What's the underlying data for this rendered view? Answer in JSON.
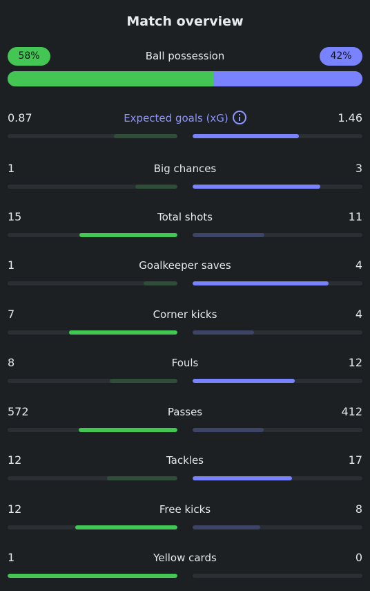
{
  "title": "Match overview",
  "possession": {
    "label": "Ball possession",
    "home": "58%",
    "away": "42%",
    "home_value": 58,
    "away_value": 42
  },
  "colors": {
    "home_strong": "#43c653",
    "home_dim": "#2f4d38",
    "away_strong": "#7a83ff",
    "away_dim": "#3e4466",
    "track": "#2a2f33"
  },
  "stats": [
    {
      "label": "Expected goals (xG)",
      "home": "0.87",
      "away": "1.46",
      "home_num": 0.87,
      "away_num": 1.46,
      "accent": true,
      "info_icon": "info-icon"
    },
    {
      "label": "Big chances",
      "home": "1",
      "away": "3",
      "home_num": 1,
      "away_num": 3
    },
    {
      "label": "Total shots",
      "home": "15",
      "away": "11",
      "home_num": 15,
      "away_num": 11
    },
    {
      "label": "Goalkeeper saves",
      "home": "1",
      "away": "4",
      "home_num": 1,
      "away_num": 4
    },
    {
      "label": "Corner kicks",
      "home": "7",
      "away": "4",
      "home_num": 7,
      "away_num": 4
    },
    {
      "label": "Fouls",
      "home": "8",
      "away": "12",
      "home_num": 8,
      "away_num": 12
    },
    {
      "label": "Passes",
      "home": "572",
      "away": "412",
      "home_num": 572,
      "away_num": 412
    },
    {
      "label": "Tackles",
      "home": "12",
      "away": "17",
      "home_num": 12,
      "away_num": 17
    },
    {
      "label": "Free kicks",
      "home": "12",
      "away": "8",
      "home_num": 12,
      "away_num": 8
    },
    {
      "label": "Yellow cards",
      "home": "1",
      "away": "0",
      "home_num": 1,
      "away_num": 0
    }
  ]
}
